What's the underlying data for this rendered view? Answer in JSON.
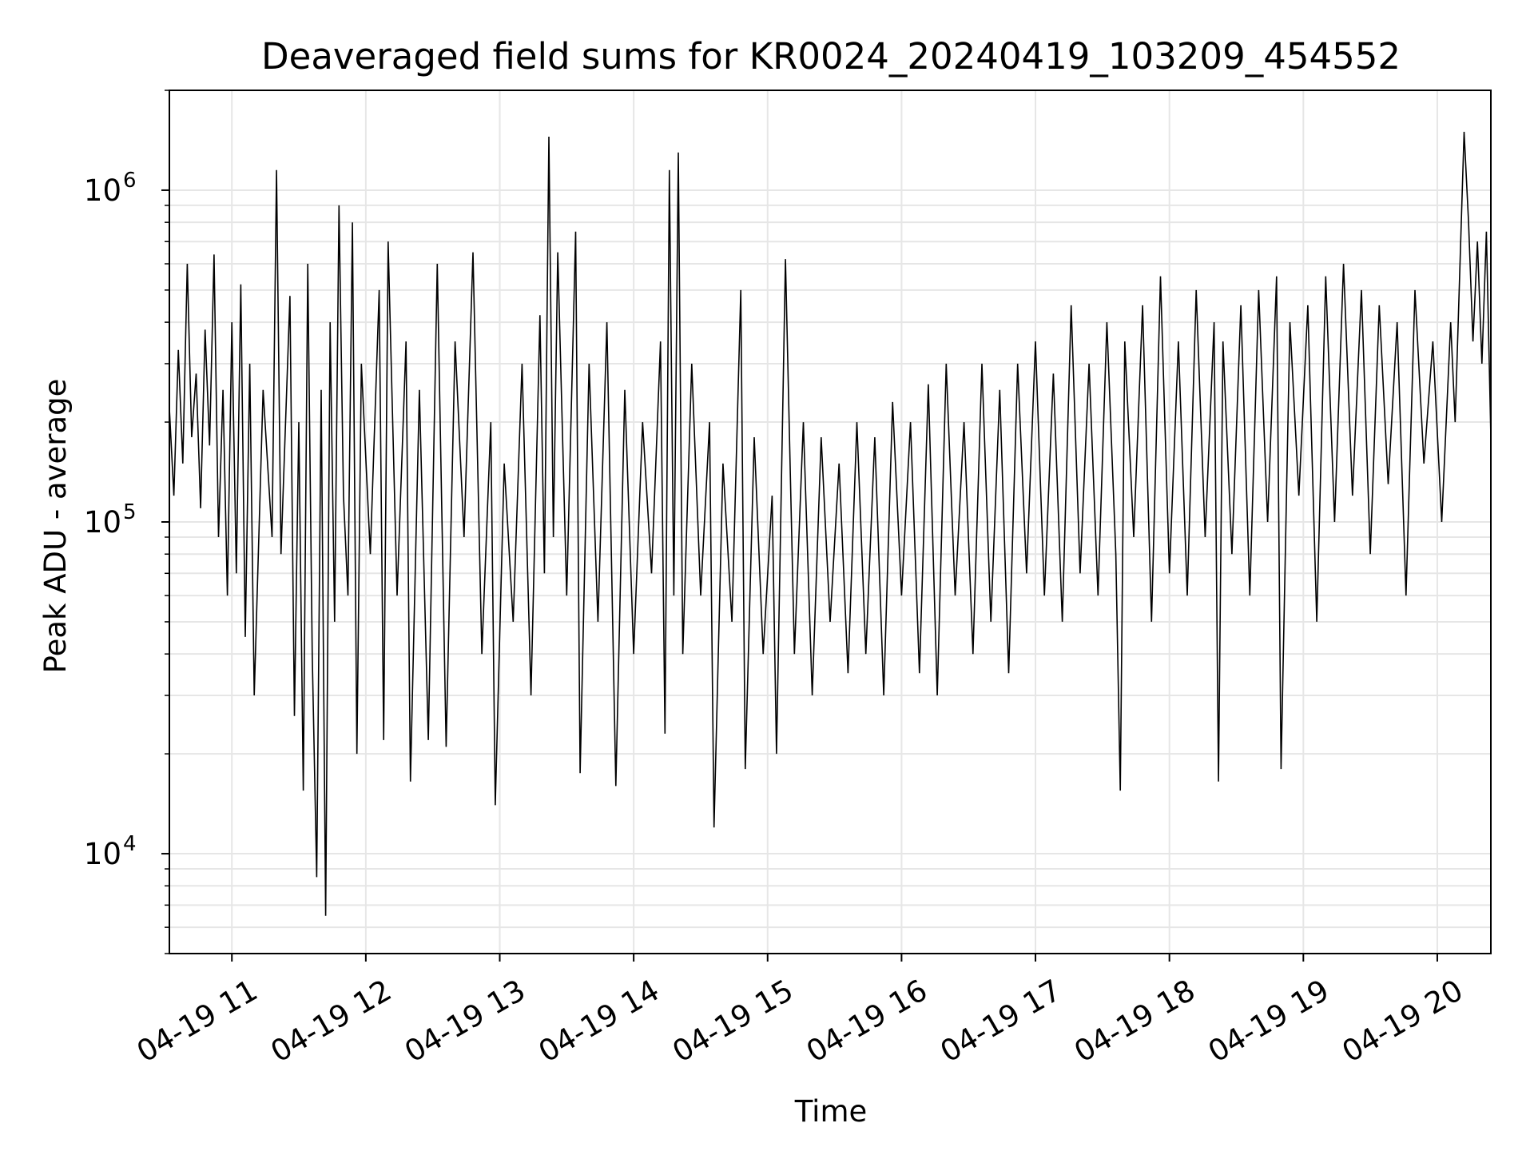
{
  "chart_data": {
    "type": "line",
    "title": "Deaveraged field sums for KR0024_20240419_103209_454552",
    "xlabel": "Time",
    "ylabel": "Peak ADU - average",
    "y_scale": "log",
    "ylim": [
      5000,
      2000000
    ],
    "xlim": [
      "2024-04-19 10:32",
      "2024-04-19 20:24"
    ],
    "grid": true,
    "legend": "none",
    "colors": {
      "line": "#000000",
      "grid": "#e6e6e6",
      "axis": "#000000",
      "background": "#ffffff"
    },
    "x_ticks": [
      {
        "time": "2024-04-19 11:00",
        "label": "04-19 11"
      },
      {
        "time": "2024-04-19 12:00",
        "label": "04-19 12"
      },
      {
        "time": "2024-04-19 13:00",
        "label": "04-19 13"
      },
      {
        "time": "2024-04-19 14:00",
        "label": "04-19 14"
      },
      {
        "time": "2024-04-19 15:00",
        "label": "04-19 15"
      },
      {
        "time": "2024-04-19 16:00",
        "label": "04-19 16"
      },
      {
        "time": "2024-04-19 17:00",
        "label": "04-19 17"
      },
      {
        "time": "2024-04-19 18:00",
        "label": "04-19 18"
      },
      {
        "time": "2024-04-19 19:00",
        "label": "04-19 19"
      },
      {
        "time": "2024-04-19 20:00",
        "label": "04-19 20"
      }
    ],
    "y_ticks": [
      {
        "value": 10000,
        "base": "10",
        "exponent": "4"
      },
      {
        "value": 100000,
        "base": "10",
        "exponent": "5"
      },
      {
        "value": 1000000,
        "base": "10",
        "exponent": "6"
      }
    ],
    "series": [
      {
        "points": [
          [
            "10:32",
            220000
          ],
          [
            "10:34",
            120000
          ],
          [
            "10:36",
            330000
          ],
          [
            "10:38",
            150000
          ],
          [
            "10:40",
            600000
          ],
          [
            "10:42",
            180000
          ],
          [
            "10:44",
            280000
          ],
          [
            "10:46",
            110000
          ],
          [
            "10:48",
            380000
          ],
          [
            "10:50",
            170000
          ],
          [
            "10:52",
            640000
          ],
          [
            "10:54",
            90000
          ],
          [
            "10:56",
            250000
          ],
          [
            "10:58",
            60000
          ],
          [
            "11:00",
            400000
          ],
          [
            "11:02",
            70000
          ],
          [
            "11:04",
            520000
          ],
          [
            "11:06",
            45000
          ],
          [
            "11:08",
            300000
          ],
          [
            "11:10",
            30000
          ],
          [
            "11:14",
            250000
          ],
          [
            "11:18",
            90000
          ],
          [
            "11:20",
            1150000
          ],
          [
            "11:22",
            80000
          ],
          [
            "11:26",
            480000
          ],
          [
            "11:28",
            26000
          ],
          [
            "11:30",
            200000
          ],
          [
            "11:32",
            15500
          ],
          [
            "11:34",
            600000
          ],
          [
            "11:36",
            40000
          ],
          [
            "11:38",
            8500
          ],
          [
            "11:40",
            250000
          ],
          [
            "11:42",
            6500
          ],
          [
            "11:44",
            400000
          ],
          [
            "11:46",
            50000
          ],
          [
            "11:48",
            900000
          ],
          [
            "11:50",
            120000
          ],
          [
            "11:52",
            60000
          ],
          [
            "11:54",
            800000
          ],
          [
            "11:56",
            20000
          ],
          [
            "11:58",
            300000
          ],
          [
            "12:02",
            80000
          ],
          [
            "12:06",
            500000
          ],
          [
            "12:08",
            22000
          ],
          [
            "12:10",
            700000
          ],
          [
            "12:14",
            60000
          ],
          [
            "12:18",
            350000
          ],
          [
            "12:20",
            16500
          ],
          [
            "12:24",
            250000
          ],
          [
            "12:28",
            22000
          ],
          [
            "12:32",
            600000
          ],
          [
            "12:36",
            21000
          ],
          [
            "12:40",
            350000
          ],
          [
            "12:44",
            90000
          ],
          [
            "12:48",
            650000
          ],
          [
            "12:52",
            40000
          ],
          [
            "12:56",
            200000
          ],
          [
            "12:58",
            14000
          ],
          [
            "13:02",
            150000
          ],
          [
            "13:06",
            50000
          ],
          [
            "13:10",
            300000
          ],
          [
            "13:14",
            30000
          ],
          [
            "13:18",
            420000
          ],
          [
            "13:20",
            70000
          ],
          [
            "13:22",
            1450000
          ],
          [
            "13:24",
            90000
          ],
          [
            "13:26",
            650000
          ],
          [
            "13:30",
            60000
          ],
          [
            "13:34",
            750000
          ],
          [
            "13:36",
            17500
          ],
          [
            "13:40",
            300000
          ],
          [
            "13:44",
            50000
          ],
          [
            "13:48",
            400000
          ],
          [
            "13:52",
            16000
          ],
          [
            "13:56",
            250000
          ],
          [
            "14:00",
            40000
          ],
          [
            "14:04",
            200000
          ],
          [
            "14:08",
            70000
          ],
          [
            "14:12",
            350000
          ],
          [
            "14:14",
            23000
          ],
          [
            "14:16",
            1150000
          ],
          [
            "14:18",
            60000
          ],
          [
            "14:20",
            1300000
          ],
          [
            "14:22",
            40000
          ],
          [
            "14:26",
            300000
          ],
          [
            "14:30",
            60000
          ],
          [
            "14:34",
            200000
          ],
          [
            "14:36",
            12000
          ],
          [
            "14:40",
            150000
          ],
          [
            "14:44",
            50000
          ],
          [
            "14:48",
            500000
          ],
          [
            "14:50",
            18000
          ],
          [
            "14:54",
            180000
          ],
          [
            "14:58",
            40000
          ],
          [
            "15:02",
            120000
          ],
          [
            "15:04",
            20000
          ],
          [
            "15:08",
            620000
          ],
          [
            "15:12",
            40000
          ],
          [
            "15:16",
            200000
          ],
          [
            "15:20",
            30000
          ],
          [
            "15:24",
            180000
          ],
          [
            "15:28",
            50000
          ],
          [
            "15:32",
            150000
          ],
          [
            "15:36",
            35000
          ],
          [
            "15:40",
            200000
          ],
          [
            "15:44",
            40000
          ],
          [
            "15:48",
            180000
          ],
          [
            "15:52",
            30000
          ],
          [
            "15:56",
            230000
          ],
          [
            "16:00",
            60000
          ],
          [
            "16:04",
            200000
          ],
          [
            "16:08",
            35000
          ],
          [
            "16:12",
            260000
          ],
          [
            "16:16",
            30000
          ],
          [
            "16:20",
            300000
          ],
          [
            "16:24",
            60000
          ],
          [
            "16:28",
            200000
          ],
          [
            "16:32",
            40000
          ],
          [
            "16:36",
            300000
          ],
          [
            "16:40",
            50000
          ],
          [
            "16:44",
            250000
          ],
          [
            "16:48",
            35000
          ],
          [
            "16:52",
            300000
          ],
          [
            "16:56",
            70000
          ],
          [
            "17:00",
            350000
          ],
          [
            "17:04",
            60000
          ],
          [
            "17:08",
            280000
          ],
          [
            "17:12",
            50000
          ],
          [
            "17:16",
            450000
          ],
          [
            "17:20",
            70000
          ],
          [
            "17:24",
            300000
          ],
          [
            "17:28",
            60000
          ],
          [
            "17:32",
            400000
          ],
          [
            "17:36",
            80000
          ],
          [
            "17:38",
            15500
          ],
          [
            "17:40",
            350000
          ],
          [
            "17:44",
            90000
          ],
          [
            "17:48",
            450000
          ],
          [
            "17:52",
            50000
          ],
          [
            "17:56",
            550000
          ],
          [
            "18:00",
            70000
          ],
          [
            "18:04",
            350000
          ],
          [
            "18:08",
            60000
          ],
          [
            "18:12",
            500000
          ],
          [
            "18:16",
            90000
          ],
          [
            "18:20",
            400000
          ],
          [
            "18:22",
            16500
          ],
          [
            "18:24",
            350000
          ],
          [
            "18:28",
            80000
          ],
          [
            "18:32",
            450000
          ],
          [
            "18:36",
            60000
          ],
          [
            "18:40",
            500000
          ],
          [
            "18:44",
            100000
          ],
          [
            "18:48",
            550000
          ],
          [
            "18:50",
            18000
          ],
          [
            "18:54",
            400000
          ],
          [
            "18:58",
            120000
          ],
          [
            "19:02",
            450000
          ],
          [
            "19:06",
            50000
          ],
          [
            "19:10",
            550000
          ],
          [
            "19:14",
            100000
          ],
          [
            "19:18",
            600000
          ],
          [
            "19:22",
            120000
          ],
          [
            "19:26",
            500000
          ],
          [
            "19:30",
            80000
          ],
          [
            "19:34",
            450000
          ],
          [
            "19:38",
            130000
          ],
          [
            "19:42",
            400000
          ],
          [
            "19:46",
            60000
          ],
          [
            "19:50",
            500000
          ],
          [
            "19:54",
            150000
          ],
          [
            "19:58",
            350000
          ],
          [
            "20:02",
            100000
          ],
          [
            "20:06",
            400000
          ],
          [
            "20:08",
            200000
          ],
          [
            "20:10",
            550000
          ],
          [
            "20:12",
            1500000
          ],
          [
            "20:14",
            800000
          ],
          [
            "20:16",
            350000
          ],
          [
            "20:18",
            700000
          ],
          [
            "20:20",
            300000
          ],
          [
            "20:22",
            750000
          ],
          [
            "20:24",
            180000
          ]
        ]
      }
    ]
  }
}
